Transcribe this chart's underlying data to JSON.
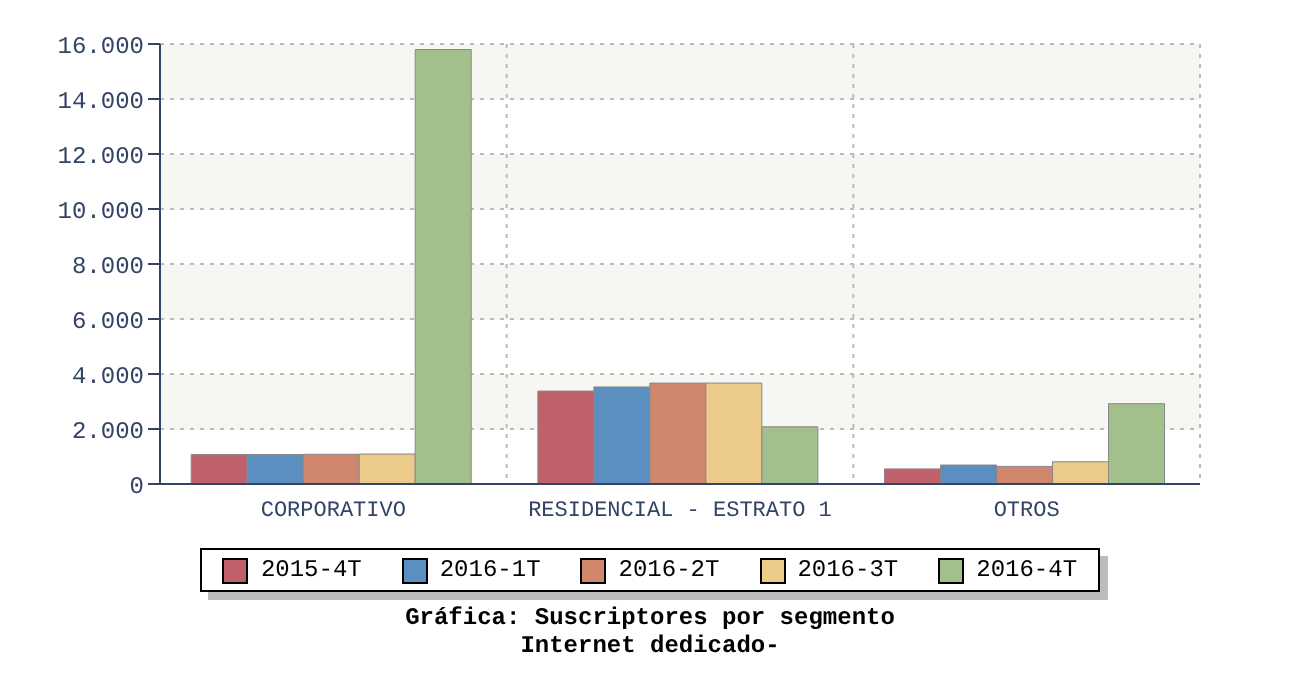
{
  "chart_data": {
    "type": "bar",
    "title": "Gráfica: Suscriptores por segmento",
    "subtitle": "Internet dedicado-",
    "categories": [
      "CORPORATIVO",
      "RESIDENCIAL - ESTRATO 1",
      "OTROS"
    ],
    "series": [
      {
        "name": "2015-4T",
        "color": "#c0606a",
        "values": [
          1070,
          3380,
          550
        ]
      },
      {
        "name": "2016-1T",
        "color": "#5b8fc0",
        "values": [
          1070,
          3530,
          690
        ]
      },
      {
        "name": "2016-2T",
        "color": "#d0876b",
        "values": [
          1080,
          3670,
          640
        ]
      },
      {
        "name": "2016-3T",
        "color": "#ecca8a",
        "values": [
          1090,
          3670,
          810
        ]
      },
      {
        "name": "2016-4T",
        "color": "#a3bf8b",
        "values": [
          15800,
          2080,
          2920
        ]
      }
    ],
    "ylim": [
      0,
      16000
    ],
    "yticks": [
      {
        "value": 0,
        "label": "0"
      },
      {
        "value": 2000,
        "label": "2.000"
      },
      {
        "value": 4000,
        "label": "4.000"
      },
      {
        "value": 6000,
        "label": "6.000"
      },
      {
        "value": 8000,
        "label": "8.000"
      },
      {
        "value": 10000,
        "label": "10.000"
      },
      {
        "value": 12000,
        "label": "12.000"
      },
      {
        "value": 14000,
        "label": "14.000"
      },
      {
        "value": 16000,
        "label": "16.000"
      }
    ],
    "grid": true,
    "legend": "bottom"
  }
}
